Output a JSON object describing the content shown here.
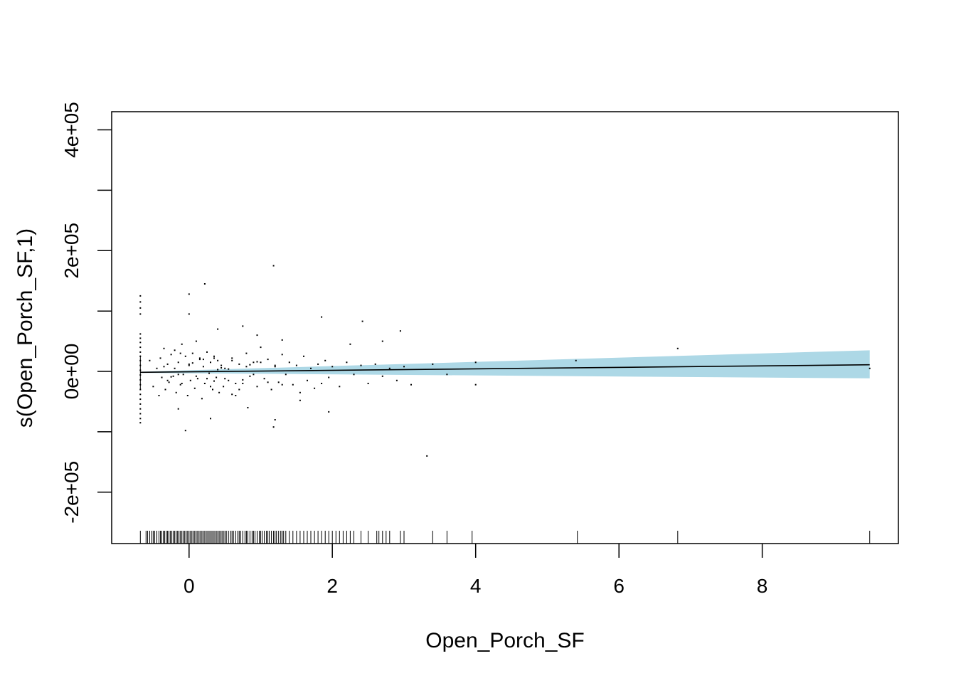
{
  "chart_data": {
    "type": "scatter",
    "title": "",
    "xlabel": "Open_Porch_SF",
    "ylabel": "s(Open_Porch_SF,1)",
    "xlim": [
      -1.08,
      9.9
    ],
    "ylim": [
      -285000,
      430000
    ],
    "x_ticks": [
      0,
      2,
      4,
      6,
      8
    ],
    "x_tick_labels": [
      "0",
      "2",
      "4",
      "6",
      "8"
    ],
    "y_ticks": [
      -200000,
      -100000,
      0,
      100000,
      200000,
      300000,
      400000
    ],
    "y_tick_labels": [
      "-2e+05",
      "",
      "0e+00",
      "",
      "2e+05",
      "",
      "4e+05"
    ],
    "grid": false,
    "smooth": {
      "name": "s(Open_Porch_SF,1)",
      "x": [
        -0.68,
        9.5
      ],
      "y": [
        -1500,
        11000
      ],
      "color": "#000000"
    },
    "confidence_band": {
      "x": [
        -0.68,
        9.5
      ],
      "lower": [
        -2500,
        -11500
      ],
      "upper": [
        -500,
        35000
      ],
      "color": "#add8e6"
    },
    "partial_residuals": {
      "color": "#000000",
      "x": [
        -0.68,
        -0.68,
        -0.68,
        -0.68,
        -0.68,
        -0.68,
        -0.68,
        -0.68,
        -0.68,
        -0.68,
        -0.68,
        -0.68,
        -0.68,
        -0.68,
        -0.68,
        -0.68,
        -0.68,
        -0.68,
        -0.68,
        -0.68,
        -0.68,
        -0.68,
        -0.68,
        -0.68,
        -0.55,
        -0.5,
        -0.45,
        -0.42,
        -0.4,
        -0.38,
        -0.35,
        -0.33,
        -0.3,
        -0.28,
        -0.25,
        -0.22,
        -0.2,
        -0.18,
        -0.15,
        -0.12,
        -0.1,
        -0.08,
        -0.05,
        -0.02,
        0.0,
        0.02,
        0.05,
        0.08,
        0.1,
        0.12,
        0.15,
        0.18,
        0.2,
        0.22,
        0.25,
        0.28,
        0.3,
        0.33,
        0.35,
        0.38,
        0.4,
        0.42,
        0.45,
        0.48,
        0.5,
        0.55,
        0.6,
        0.65,
        0.7,
        0.75,
        0.8,
        0.85,
        0.9,
        0.95,
        1.0,
        1.05,
        1.1,
        1.15,
        1.2,
        1.25,
        1.3,
        1.35,
        1.4,
        1.45,
        1.5,
        1.55,
        1.6,
        1.65,
        1.7,
        1.75,
        1.8,
        1.85,
        1.9,
        1.95,
        2.0,
        2.1,
        2.2,
        2.3,
        2.4,
        2.5,
        2.6,
        2.7,
        2.8,
        2.9,
        3.0,
        3.1,
        3.4,
        3.6,
        4.0,
        -0.3,
        -0.2,
        -0.1,
        0.0,
        0.1,
        0.2,
        0.3,
        0.4,
        0.5,
        0.6,
        0.7,
        0.8,
        0.9,
        1.0,
        1.1,
        1.2,
        1.3,
        -0.35,
        -0.15,
        0.05,
        0.25,
        0.45,
        0.65,
        0.85,
        -0.25,
        0.15,
        0.35,
        0.55,
        0.75,
        0.95,
        -0.12,
        0.0,
        0.22,
        1.18,
        1.2,
        1.18,
        1.85,
        2.42,
        2.95,
        0.4,
        0.75,
        0.95,
        1.3,
        3.32,
        0.35,
        0.3,
        1.95,
        0.0,
        -0.15,
        4.0,
        5.4,
        6.82,
        9.5,
        2.25,
        2.7,
        0.6,
        -0.05,
        1.55,
        0.82
      ],
      "y": [
        125000,
        115000,
        105000,
        95000,
        62000,
        55000,
        48000,
        40000,
        32000,
        25000,
        18000,
        10000,
        2000,
        -6000,
        -14000,
        -22000,
        -30000,
        -38000,
        -46000,
        -54000,
        -62000,
        -70000,
        -78000,
        -85000,
        18000,
        -25000,
        5000,
        -40000,
        22000,
        -10000,
        38000,
        -30000,
        12000,
        -18000,
        28000,
        -8000,
        35000,
        -35000,
        15000,
        -22000,
        45000,
        -5000,
        25000,
        -40000,
        10000,
        -15000,
        30000,
        -28000,
        50000,
        -12000,
        20000,
        -45000,
        8000,
        -20000,
        32000,
        -3000,
        15000,
        -30000,
        25000,
        -10000,
        18000,
        -35000,
        10000,
        -25000,
        5000,
        -15000,
        22000,
        -40000,
        12000,
        -20000,
        30000,
        -8000,
        15000,
        -25000,
        40000,
        -12000,
        20000,
        -30000,
        8000,
        -18000,
        28000,
        -5000,
        15000,
        -22000,
        10000,
        -35000,
        25000,
        -15000,
        5000,
        -28000,
        12000,
        -20000,
        18000,
        -10000,
        8000,
        -25000,
        15000,
        -5000,
        10000,
        -20000,
        12000,
        -8000,
        5000,
        -15000,
        8000,
        -22000,
        12000,
        -5000,
        15000,
        -15000,
        5000,
        -20000,
        12000,
        -8000,
        20000,
        -25000,
        3000,
        -12000,
        18000,
        -30000,
        8000,
        -5000,
        15000,
        -18000,
        10000,
        -22000,
        8000,
        -5000,
        14000,
        -12000,
        6000,
        -20000,
        11000,
        -9000,
        22000,
        -16000,
        4000,
        -14000,
        16000,
        30000,
        95000,
        145000,
        175000,
        -80000,
        -92000,
        90000,
        83000,
        67000,
        70000,
        75000,
        60000,
        52000,
        -140000,
        22000,
        -78000,
        -67000,
        128000,
        -62000,
        -22000,
        18000,
        38000,
        5000,
        45000,
        50000,
        -38000,
        -98000,
        -48000,
        -60000
      ]
    },
    "rug_x": [
      -0.68,
      -0.6,
      -0.58,
      -0.55,
      -0.52,
      -0.5,
      -0.48,
      -0.45,
      -0.42,
      -0.4,
      -0.38,
      -0.36,
      -0.34,
      -0.32,
      -0.3,
      -0.28,
      -0.26,
      -0.24,
      -0.22,
      -0.2,
      -0.18,
      -0.16,
      -0.14,
      -0.12,
      -0.1,
      -0.08,
      -0.06,
      -0.04,
      -0.02,
      0.0,
      0.02,
      0.04,
      0.06,
      0.08,
      0.1,
      0.12,
      0.14,
      0.16,
      0.18,
      0.2,
      0.22,
      0.24,
      0.26,
      0.28,
      0.3,
      0.32,
      0.34,
      0.36,
      0.38,
      0.4,
      0.42,
      0.44,
      0.46,
      0.48,
      0.5,
      0.52,
      0.55,
      0.58,
      0.6,
      0.62,
      0.65,
      0.68,
      0.7,
      0.72,
      0.75,
      0.78,
      0.8,
      0.82,
      0.85,
      0.88,
      0.9,
      0.92,
      0.95,
      0.98,
      1.0,
      1.02,
      1.05,
      1.08,
      1.1,
      1.12,
      1.15,
      1.18,
      1.2,
      1.22,
      1.25,
      1.28,
      1.3,
      1.32,
      1.35,
      1.4,
      1.45,
      1.5,
      1.55,
      1.6,
      1.65,
      1.7,
      1.75,
      1.8,
      1.85,
      1.9,
      1.95,
      2.0,
      2.05,
      2.1,
      2.15,
      2.2,
      2.25,
      2.3,
      2.4,
      2.5,
      2.62,
      2.65,
      2.7,
      2.75,
      2.8,
      2.95,
      3.0,
      3.4,
      3.6,
      3.95,
      5.42,
      6.82,
      9.5
    ]
  }
}
